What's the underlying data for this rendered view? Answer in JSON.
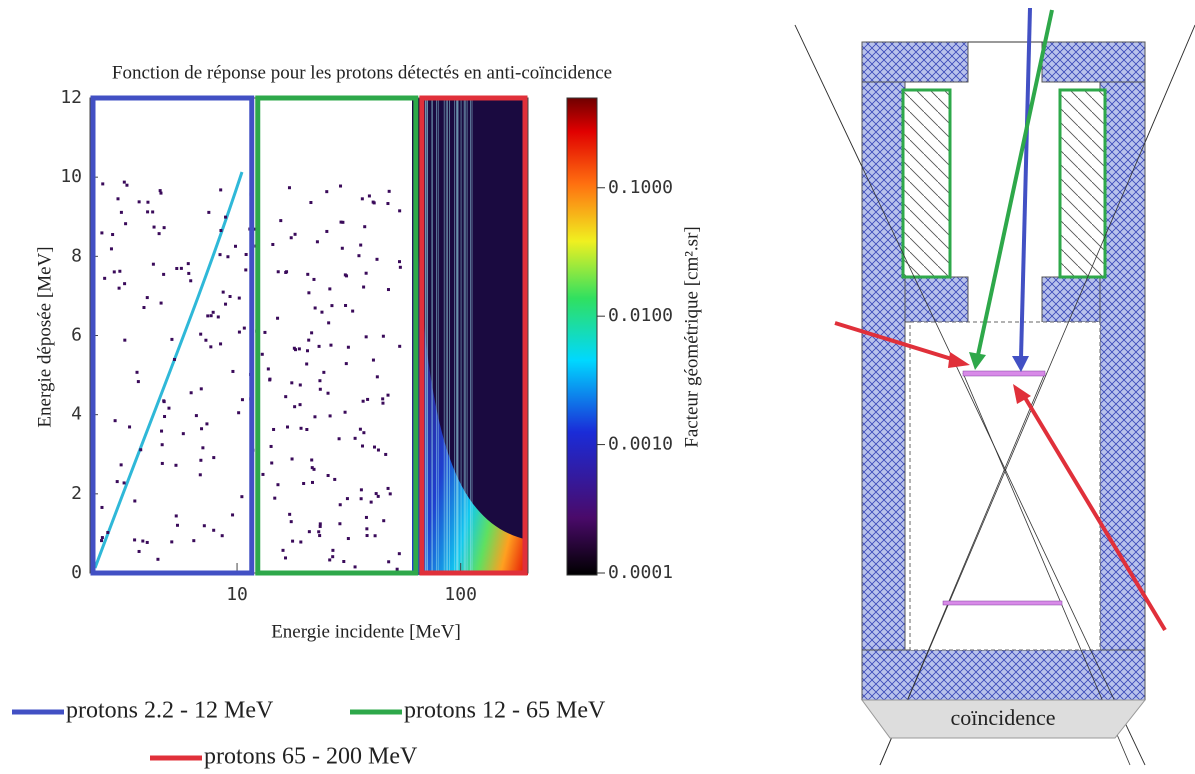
{
  "chart_data": {
    "type": "heatmap",
    "title": "Fonction de réponse pour les protons détectés en anti-coïncidence",
    "x_label": "Energie incidente [MeV]",
    "y_label": "Energie déposée [MeV]",
    "colorbar_label": "Facteur géométrique [cm².sr]",
    "xlog": true,
    "xlim": [
      2.2,
      200
    ],
    "xticks": [
      10,
      100
    ],
    "ylim": [
      0,
      12
    ],
    "yticks": [
      0,
      2,
      4,
      6,
      8,
      10,
      12
    ],
    "clog": true,
    "clim": [
      0.0001,
      0.5
    ],
    "cticks": [
      {
        "value": 0.0001,
        "label": "0.0001"
      },
      {
        "value": 0.001,
        "label": "0.0010"
      },
      {
        "value": 0.01,
        "label": "0.0100"
      },
      {
        "value": 0.1,
        "label": "0.1000"
      }
    ],
    "series": [
      {
        "name": "protons 2.2 - 12 MeV",
        "color": "#4250c4",
        "range": [
          2.2,
          12
        ]
      },
      {
        "name": "protons 12 - 65 MeV",
        "color": "#2ea84a",
        "range": [
          12,
          65
        ]
      },
      {
        "name": "protons 65 - 200 MeV",
        "color": "#e0303a",
        "range": [
          65,
          200
        ]
      }
    ]
  },
  "diagram": {
    "label": "coïncidence"
  }
}
